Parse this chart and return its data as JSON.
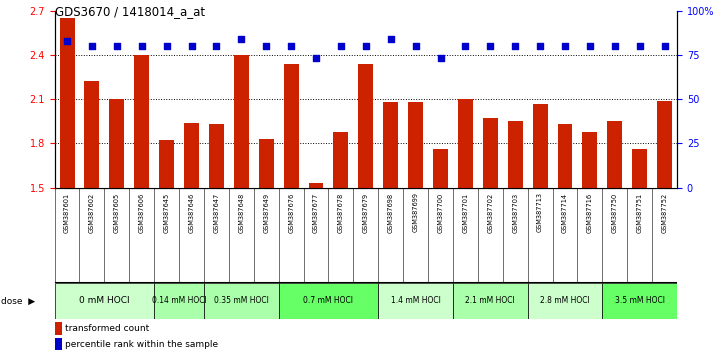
{
  "title": "GDS3670 / 1418014_a_at",
  "samples": [
    "GSM387601",
    "GSM387602",
    "GSM387605",
    "GSM387606",
    "GSM387645",
    "GSM387646",
    "GSM387647",
    "GSM387648",
    "GSM387649",
    "GSM387676",
    "GSM387677",
    "GSM387678",
    "GSM387679",
    "GSM387698",
    "GSM387699",
    "GSM387700",
    "GSM387701",
    "GSM387702",
    "GSM387703",
    "GSM387713",
    "GSM387714",
    "GSM387716",
    "GSM387750",
    "GSM387751",
    "GSM387752"
  ],
  "bar_values": [
    2.65,
    2.22,
    2.1,
    2.4,
    1.82,
    1.94,
    1.93,
    2.4,
    1.83,
    2.34,
    1.53,
    1.88,
    2.34,
    2.08,
    2.08,
    1.76,
    2.1,
    1.97,
    1.95,
    2.07,
    1.93,
    1.88,
    1.95,
    1.76,
    2.09
  ],
  "dot_values": [
    83,
    80,
    80,
    80,
    80,
    80,
    80,
    84,
    80,
    80,
    73,
    80,
    80,
    84,
    80,
    73,
    80,
    80,
    80,
    80,
    80,
    80,
    80,
    80,
    80
  ],
  "dose_groups": [
    {
      "label": "0 mM HOCl",
      "start": 0,
      "end": 4,
      "color": "#ccffcc"
    },
    {
      "label": "0.14 mM HOCl",
      "start": 4,
      "end": 6,
      "color": "#aaffaa"
    },
    {
      "label": "0.35 mM HOCl",
      "start": 6,
      "end": 9,
      "color": "#aaffaa"
    },
    {
      "label": "0.7 mM HOCl",
      "start": 9,
      "end": 13,
      "color": "#66ff66"
    },
    {
      "label": "1.4 mM HOCl",
      "start": 13,
      "end": 16,
      "color": "#ccffcc"
    },
    {
      "label": "2.1 mM HOCl",
      "start": 16,
      "end": 19,
      "color": "#aaffaa"
    },
    {
      "label": "2.8 mM HOCl",
      "start": 19,
      "end": 22,
      "color": "#ccffcc"
    },
    {
      "label": "3.5 mM HOCl",
      "start": 22,
      "end": 25,
      "color": "#66ff66"
    }
  ],
  "ylim_left": [
    1.5,
    2.7
  ],
  "ylim_right": [
    0,
    100
  ],
  "yticks_left": [
    1.5,
    1.8,
    2.1,
    2.4,
    2.7
  ],
  "yticks_right": [
    0,
    25,
    50,
    75,
    100
  ],
  "bar_color": "#cc2200",
  "dot_color": "#0000cc",
  "bg_color": "#ffffff",
  "label_bg_color": "#cccccc",
  "legend_labels": [
    "transformed count",
    "percentile rank within the sample"
  ]
}
